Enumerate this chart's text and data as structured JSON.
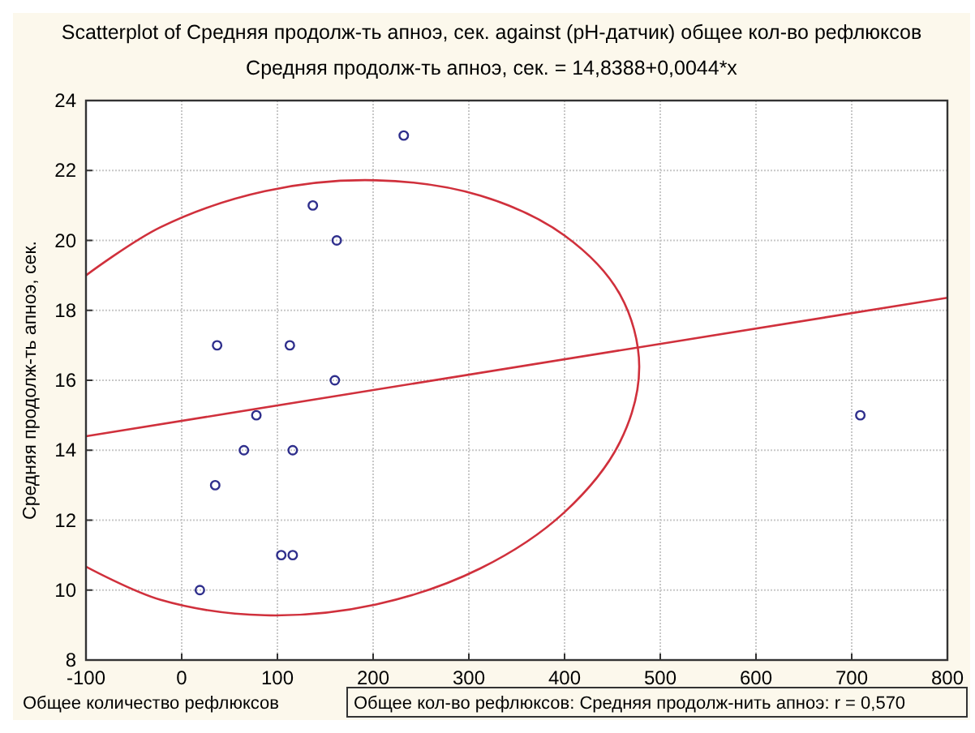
{
  "chart_data": {
    "type": "scatter",
    "title": "Scatterplot of Средняя продолж-ть апноэ, сек. against (pH-датчик) общее кол-во рефлюксов",
    "subtitle": "Средняя продолж-ть апноэ, сек. = 14,8388+0,0044*x",
    "xlabel": "Общее количество рефлюксов",
    "ylabel": "Средняя продолж-ть апноэ, сек.",
    "annotations": [
      "Общее кол-во рефлюксов: Средняя продолж-нить апноэ: r = 0,570"
    ],
    "xlim": [
      -100,
      800
    ],
    "xticks": [
      -100,
      0,
      100,
      200,
      300,
      400,
      500,
      600,
      700,
      800
    ],
    "ylim": [
      8,
      24
    ],
    "yticks": [
      8,
      10,
      12,
      14,
      16,
      18,
      20,
      22,
      24
    ],
    "grid": true,
    "marker": "circle",
    "series": [
      {
        "color": "#2e2e8c",
        "x": [
          232,
          137,
          162,
          37,
          113,
          160,
          78,
          65,
          116,
          35,
          104,
          116,
          19,
          709
        ],
        "values": [
          23,
          21,
          20,
          17,
          17,
          16,
          15,
          14,
          14,
          13,
          11,
          11,
          10,
          15
        ]
      },
      {
        "type": "line",
        "marker": "none",
        "color": "#d0303c",
        "x": [
          -100,
          800
        ],
        "values": [
          14.4,
          18.36
        ]
      },
      {
        "type": "line",
        "marker": "none",
        "color": "#d0303c",
        "x": [
          -100,
          -22,
          87,
          203,
          312,
          400,
          458,
          478,
          458,
          400,
          312,
          203,
          87,
          -22,
          -100
        ],
        "values": [
          19.0,
          20.38,
          21.41,
          21.72,
          21.28,
          20.14,
          18.45,
          16.4,
          14.24,
          12.23,
          10.62,
          9.59,
          9.28,
          9.72,
          10.67
        ]
      }
    ]
  }
}
